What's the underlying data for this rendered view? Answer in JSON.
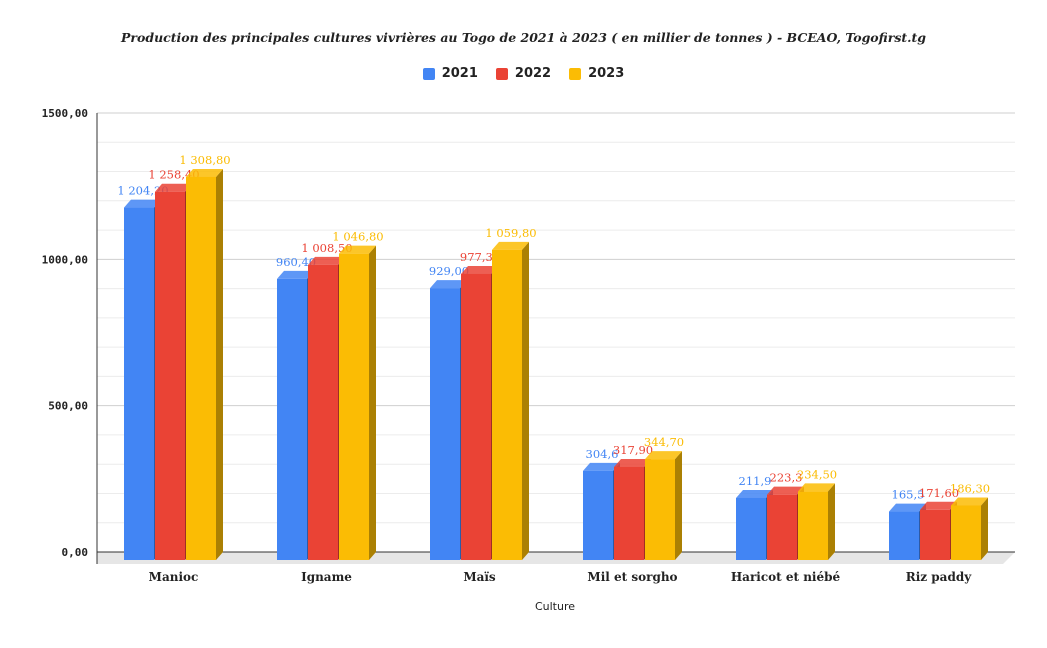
{
  "chart_data": {
    "type": "bar",
    "title": "Production des principales cultures vivrières au Togo de 2021 à 2023 ( en millier de tonnes ) - BCEAO, Togofirst.tg",
    "xlabel": "Culture",
    "ylabel": "",
    "categories": [
      "Manioc",
      "Igname",
      "Maïs",
      "Mil et sorgho",
      "Haricot et niébé",
      "Riz paddy"
    ],
    "series": [
      {
        "name": "2021",
        "color": "#4285f4",
        "values": [
          1204.2,
          960.4,
          929.0,
          304.6,
          211.9,
          165.5
        ],
        "labels": [
          "1 204,20",
          "960,40",
          "929,00",
          "304,6",
          "211,9",
          "165,5"
        ]
      },
      {
        "name": "2022",
        "color": "#ea4335",
        "values": [
          1258.4,
          1008.5,
          977.3,
          317.9,
          223.3,
          171.6
        ],
        "labels": [
          "1 258,40",
          "1 008,50",
          "977,30",
          "317,90",
          "223,3",
          "171,60"
        ]
      },
      {
        "name": "2023",
        "color": "#fbbc04",
        "values": [
          1308.8,
          1046.8,
          1059.8,
          344.7,
          234.5,
          186.3
        ],
        "labels": [
          "1 308,80",
          "1 046,80",
          "1 059,80",
          "344,70",
          "234,50",
          "186,30"
        ]
      }
    ],
    "yticks": [
      0,
      500,
      1000,
      1500
    ],
    "ytick_labels": [
      "0,00",
      "500,00",
      "1000,00",
      "1500,00"
    ],
    "ylim": [
      0,
      1500
    ],
    "grid": true,
    "legend_position": "top"
  }
}
